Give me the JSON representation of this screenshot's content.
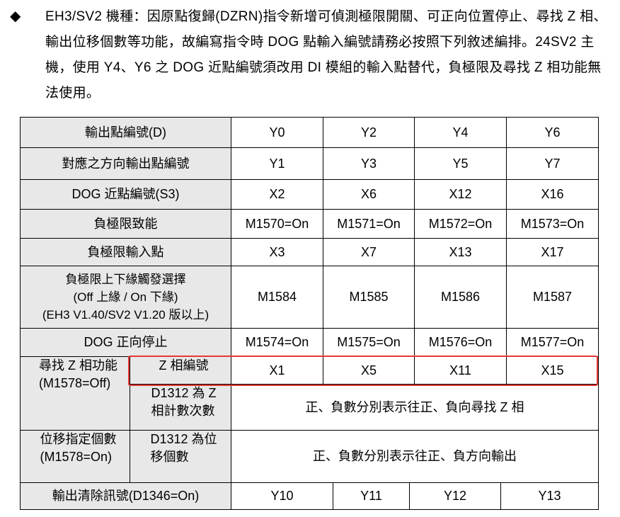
{
  "bullet": "◆",
  "paragraph": "EH3/SV2 機種：因原點復歸(DZRN)指令新增可偵測極限開關、可正向位置停止、尋找 Z 相、輸出位移個數等功能，故編寫指令時 DOG 點輸入編號請務必按照下列敘述編排。24SV2 主機，使用 Y4、Y6 之 DOG 近點編號須改用 DI 模組的輸入點替代，負極限及尋找 Z 相功能無法使用。",
  "table": {
    "rows": [
      {
        "label": "輸出點編號(D)",
        "values": [
          "Y0",
          "Y2",
          "Y4",
          "Y6"
        ]
      },
      {
        "label": "對應之方向輸出點編號",
        "values": [
          "Y1",
          "Y3",
          "Y5",
          "Y7"
        ]
      },
      {
        "label": "DOG 近點編號(S3)",
        "values": [
          "X2",
          "X6",
          "X12",
          "X16"
        ]
      },
      {
        "label": "負極限致能",
        "values": [
          "M1570=On",
          "M1571=On",
          "M1572=On",
          "M1573=On"
        ]
      },
      {
        "label": "負極限輸入點",
        "values": [
          "X3",
          "X7",
          "X13",
          "X17"
        ]
      },
      {
        "label": "負極限上下緣觸發選擇\n(Off 上緣  / On 下緣)\n(EH3 V1.40/SV2 V1.20 版以上)",
        "values": [
          "M1584",
          "M1585",
          "M1586",
          "M1587"
        ]
      },
      {
        "label": "DOG 正向停止",
        "values": [
          "M1574=On",
          "M1575=On",
          "M1576=On",
          "M1577=On"
        ]
      }
    ],
    "zsearch": {
      "label": "尋找 Z 相功能\n(M1578=Off)",
      "sub1": "Z 相編號",
      "values": [
        "X1",
        "X5",
        "X11",
        "X15"
      ],
      "sub2": "D1312 為 Z\n相計數次數",
      "desc": "正、負數分別表示往正、負向尋找 Z 相"
    },
    "displacement": {
      "label": "位移指定個數\n(M1578=On)",
      "sub": "D1312 為位\n移個數",
      "desc": "正、負數分別表示往正、負方向輸出"
    },
    "clear": {
      "label": "輸出清除訊號(D1346=On)",
      "values": [
        "Y10",
        "Y11",
        "Y12",
        "Y13"
      ]
    }
  },
  "highlight_color": "#e53935"
}
